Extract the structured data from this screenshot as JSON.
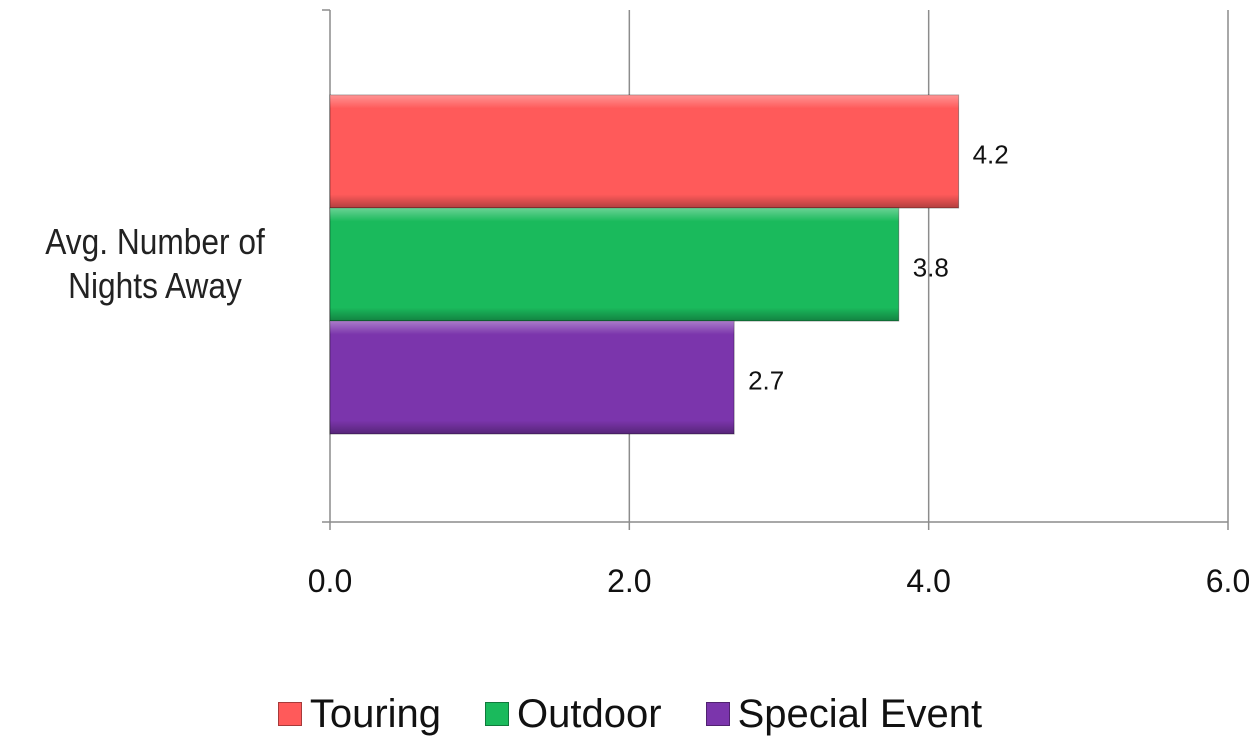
{
  "chart_data": {
    "type": "bar",
    "orientation": "horizontal",
    "categories": [
      "Avg. Number of Nights Away"
    ],
    "category_label_lines": [
      "Avg. Number of",
      "Nights Away"
    ],
    "series": [
      {
        "name": "Touring",
        "values": [
          4.2
        ],
        "color": "#ff5a5a"
      },
      {
        "name": "Outdoor",
        "values": [
          3.8
        ],
        "color": "#1aba5c"
      },
      {
        "name": "Special Event",
        "values": [
          2.7
        ],
        "color": "#7b35ac"
      }
    ],
    "data_labels": [
      "4.2",
      "3.8",
      "2.7"
    ],
    "xlim": [
      0,
      6
    ],
    "x_ticks": [
      "0.0",
      "2.0",
      "4.0",
      "6.0"
    ],
    "grid": true,
    "legend_position": "bottom"
  }
}
